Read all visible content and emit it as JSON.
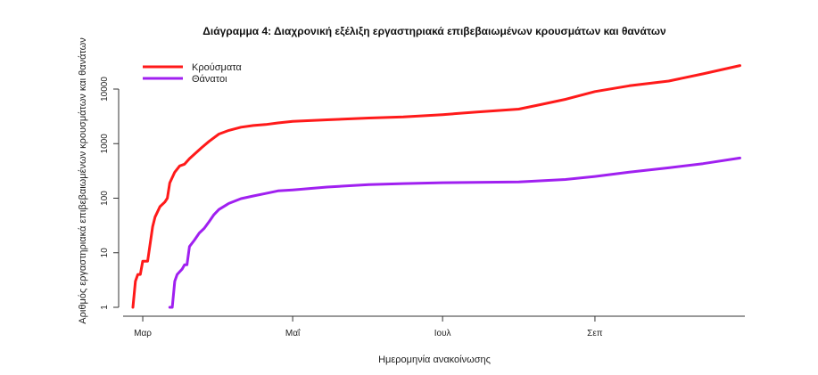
{
  "chart_data": {
    "type": "line",
    "title": "Διάγραμμα 4: Διαχρονική εξέλιξη εργαστηριακά επιβεβαιωμένων κρουσμάτων και θανάτων",
    "xlabel": "Ημερομηνία ανακοίνωσης",
    "ylabel": "Αριθμός εργαστηριακά επιβεβαιωμένων κρουσμάτων και θανάτων",
    "y_scale": "log",
    "ylim": [
      1,
      30000
    ],
    "y_ticks": [
      1,
      10,
      100,
      1000,
      10000
    ],
    "y_tick_labels": [
      "1",
      "10",
      "100",
      "1000",
      "10000"
    ],
    "x_ticks": [
      {
        "date": "2020-03-01",
        "label": "Μαρ"
      },
      {
        "date": "2020-05-01",
        "label": "Μαΐ"
      },
      {
        "date": "2020-07-01",
        "label": "Ιουλ"
      },
      {
        "date": "2020-09-01",
        "label": "Σεπ"
      }
    ],
    "xlim": [
      "2020-02-22",
      "2020-11-01"
    ],
    "legend_position": "top-left",
    "series": [
      {
        "name": "Κρούσματα",
        "color": "#ff1a1a",
        "points": [
          [
            "2020-02-26",
            1
          ],
          [
            "2020-02-27",
            3
          ],
          [
            "2020-02-28",
            4
          ],
          [
            "2020-02-29",
            4
          ],
          [
            "2020-03-01",
            7
          ],
          [
            "2020-03-03",
            7
          ],
          [
            "2020-03-05",
            30
          ],
          [
            "2020-03-06",
            45
          ],
          [
            "2020-03-08",
            70
          ],
          [
            "2020-03-10",
            85
          ],
          [
            "2020-03-11",
            100
          ],
          [
            "2020-03-12",
            190
          ],
          [
            "2020-03-14",
            300
          ],
          [
            "2020-03-16",
            390
          ],
          [
            "2020-03-18",
            420
          ],
          [
            "2020-03-20",
            530
          ],
          [
            "2020-03-22",
            640
          ],
          [
            "2020-03-25",
            850
          ],
          [
            "2020-03-28",
            1100
          ],
          [
            "2020-04-01",
            1500
          ],
          [
            "2020-04-05",
            1750
          ],
          [
            "2020-04-10",
            2000
          ],
          [
            "2020-04-15",
            2150
          ],
          [
            "2020-04-20",
            2240
          ],
          [
            "2020-04-25",
            2400
          ],
          [
            "2020-05-01",
            2550
          ],
          [
            "2020-05-15",
            2730
          ],
          [
            "2020-06-01",
            2950
          ],
          [
            "2020-06-15",
            3100
          ],
          [
            "2020-07-01",
            3400
          ],
          [
            "2020-07-15",
            3800
          ],
          [
            "2020-08-01",
            4300
          ],
          [
            "2020-08-10",
            5200
          ],
          [
            "2020-08-20",
            6500
          ],
          [
            "2020-09-01",
            9000
          ],
          [
            "2020-09-15",
            11500
          ],
          [
            "2020-10-01",
            14000
          ],
          [
            "2020-10-15",
            19000
          ],
          [
            "2020-10-30",
            27000
          ]
        ]
      },
      {
        "name": "Θάνατοι",
        "color": "#a020f0",
        "points": [
          [
            "2020-03-12",
            1
          ],
          [
            "2020-03-13",
            1
          ],
          [
            "2020-03-14",
            3
          ],
          [
            "2020-03-15",
            4
          ],
          [
            "2020-03-17",
            5
          ],
          [
            "2020-03-18",
            6
          ],
          [
            "2020-03-19",
            6
          ],
          [
            "2020-03-20",
            13
          ],
          [
            "2020-03-22",
            17
          ],
          [
            "2020-03-24",
            23
          ],
          [
            "2020-03-26",
            28
          ],
          [
            "2020-03-28",
            37
          ],
          [
            "2020-03-30",
            50
          ],
          [
            "2020-04-01",
            62
          ],
          [
            "2020-04-05",
            80
          ],
          [
            "2020-04-10",
            98
          ],
          [
            "2020-04-15",
            110
          ],
          [
            "2020-04-20",
            122
          ],
          [
            "2020-04-25",
            136
          ],
          [
            "2020-05-01",
            142
          ],
          [
            "2020-05-15",
            160
          ],
          [
            "2020-06-01",
            178
          ],
          [
            "2020-06-15",
            185
          ],
          [
            "2020-07-01",
            192
          ],
          [
            "2020-08-01",
            198
          ],
          [
            "2020-08-20",
            220
          ],
          [
            "2020-09-01",
            250
          ],
          [
            "2020-09-15",
            300
          ],
          [
            "2020-10-01",
            360
          ],
          [
            "2020-10-15",
            430
          ],
          [
            "2020-10-30",
            545
          ]
        ]
      }
    ]
  }
}
